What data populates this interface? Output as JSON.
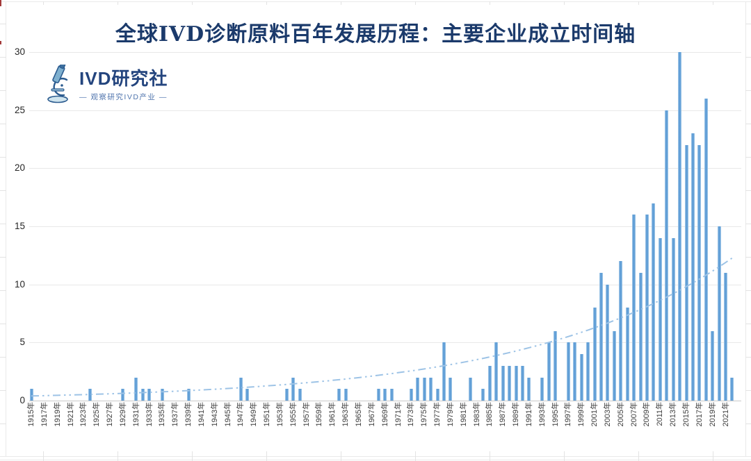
{
  "title": "全球IVD诊断原料百年发展历程：主要企业成立时间轴",
  "logo": {
    "icon": "microscope-icon",
    "name": "IVD研究社",
    "tagline": "— 观察研究IVD产业 —"
  },
  "colors": {
    "title_text": "#1b3a6b",
    "logo_text": "#24457e",
    "logo_tagline": "#4f74ad",
    "bar_core": "#5b9bd5",
    "bar_edge": "#a9cce9",
    "trend_line": "#9dc3e6",
    "gridline": "#e8e8e8",
    "axis_line": "#c9c9c9",
    "tick_text": "#3d3d3d"
  },
  "chart_data": {
    "type": "bar",
    "title": "全球IVD诊断原料百年发展历程：主要企业成立时间轴",
    "xlabel": "",
    "ylabel": "",
    "ylim": [
      0,
      30
    ],
    "yticks": [
      0,
      5,
      10,
      15,
      20,
      25,
      30
    ],
    "grid": true,
    "legend": "none",
    "x_tick_range": {
      "start": 1915,
      "end": 2021,
      "step": 2,
      "suffix": "年"
    },
    "points": [
      [
        1915,
        1
      ],
      [
        1924,
        1
      ],
      [
        1929,
        1
      ],
      [
        1931,
        2
      ],
      [
        1932,
        1
      ],
      [
        1933,
        1
      ],
      [
        1935,
        1
      ],
      [
        1939,
        1
      ],
      [
        1947,
        2
      ],
      [
        1948,
        1
      ],
      [
        1954,
        1
      ],
      [
        1955,
        2
      ],
      [
        1956,
        1
      ],
      [
        1962,
        1
      ],
      [
        1963,
        1
      ],
      [
        1968,
        1
      ],
      [
        1969,
        1
      ],
      [
        1970,
        1
      ],
      [
        1973,
        1
      ],
      [
        1974,
        2
      ],
      [
        1975,
        2
      ],
      [
        1976,
        2
      ],
      [
        1977,
        1
      ],
      [
        1978,
        5
      ],
      [
        1979,
        2
      ],
      [
        1982,
        2
      ],
      [
        1984,
        1
      ],
      [
        1985,
        3
      ],
      [
        1986,
        5
      ],
      [
        1987,
        3
      ],
      [
        1988,
        3
      ],
      [
        1989,
        3
      ],
      [
        1990,
        3
      ],
      [
        1991,
        2
      ],
      [
        1993,
        2
      ],
      [
        1994,
        5
      ],
      [
        1995,
        6
      ],
      [
        1997,
        5
      ],
      [
        1998,
        5
      ],
      [
        1999,
        4
      ],
      [
        2000,
        5
      ],
      [
        2001,
        8
      ],
      [
        2002,
        11
      ],
      [
        2003,
        10
      ],
      [
        2004,
        6
      ],
      [
        2005,
        12
      ],
      [
        2006,
        8
      ],
      [
        2007,
        16
      ],
      [
        2008,
        11
      ],
      [
        2009,
        16
      ],
      [
        2010,
        17
      ],
      [
        2011,
        14
      ],
      [
        2012,
        25
      ],
      [
        2013,
        14
      ],
      [
        2014,
        30
      ],
      [
        2015,
        22
      ],
      [
        2016,
        23
      ],
      [
        2017,
        22
      ],
      [
        2018,
        26
      ],
      [
        2019,
        6
      ],
      [
        2020,
        15
      ],
      [
        2021,
        11
      ],
      [
        2022,
        2
      ]
    ],
    "trendline": {
      "style": "dash-dot-dot",
      "type": "exponential",
      "a": 0.4,
      "k": 0.032,
      "from": 1915,
      "to": 2022
    }
  }
}
